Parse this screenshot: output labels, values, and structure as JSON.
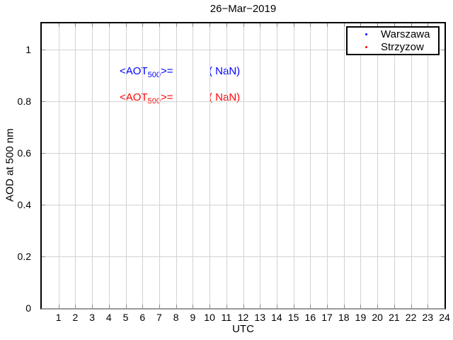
{
  "chart_data": {
    "type": "scatter",
    "title": "26−Mar−2019",
    "xlabel": "UTC",
    "ylabel": "AOD at 500 nm",
    "xlim": [
      0,
      24
    ],
    "ylim": [
      0,
      1.1
    ],
    "x_ticks": [
      1,
      2,
      3,
      4,
      5,
      6,
      7,
      8,
      9,
      10,
      11,
      12,
      13,
      14,
      15,
      16,
      17,
      18,
      19,
      20,
      21,
      22,
      23,
      24
    ],
    "y_ticks": [
      0,
      0.2,
      0.4,
      0.6,
      0.8,
      1
    ],
    "y_tick_labels": [
      "0",
      "0.2",
      "0.4",
      "0.6",
      "0.8",
      "1"
    ],
    "grid": true,
    "legend_position": "top-right",
    "series": [
      {
        "name": "Warszawa",
        "color": "#0000ff",
        "marker": "dot",
        "x": [],
        "y": []
      },
      {
        "name": "Strzyzow",
        "color": "#ff0000",
        "marker": "dot",
        "x": [],
        "y": []
      }
    ],
    "annotations": [
      {
        "prefix": "<AOT",
        "sub": "500",
        "suffix": ">=",
        "value": "( NaN)",
        "color": "#0000ff",
        "x": 2.2,
        "y": 1.0
      },
      {
        "prefix": "<AOT",
        "sub": "500",
        "suffix": ">=",
        "value": "( NaN)",
        "color": "#ff0000",
        "x": 2.2,
        "y": 0.9
      }
    ],
    "colors": {
      "axis": "#000000",
      "grid": "#d2d2d2",
      "tick": "#8a8a8a",
      "text": "#000000"
    }
  }
}
